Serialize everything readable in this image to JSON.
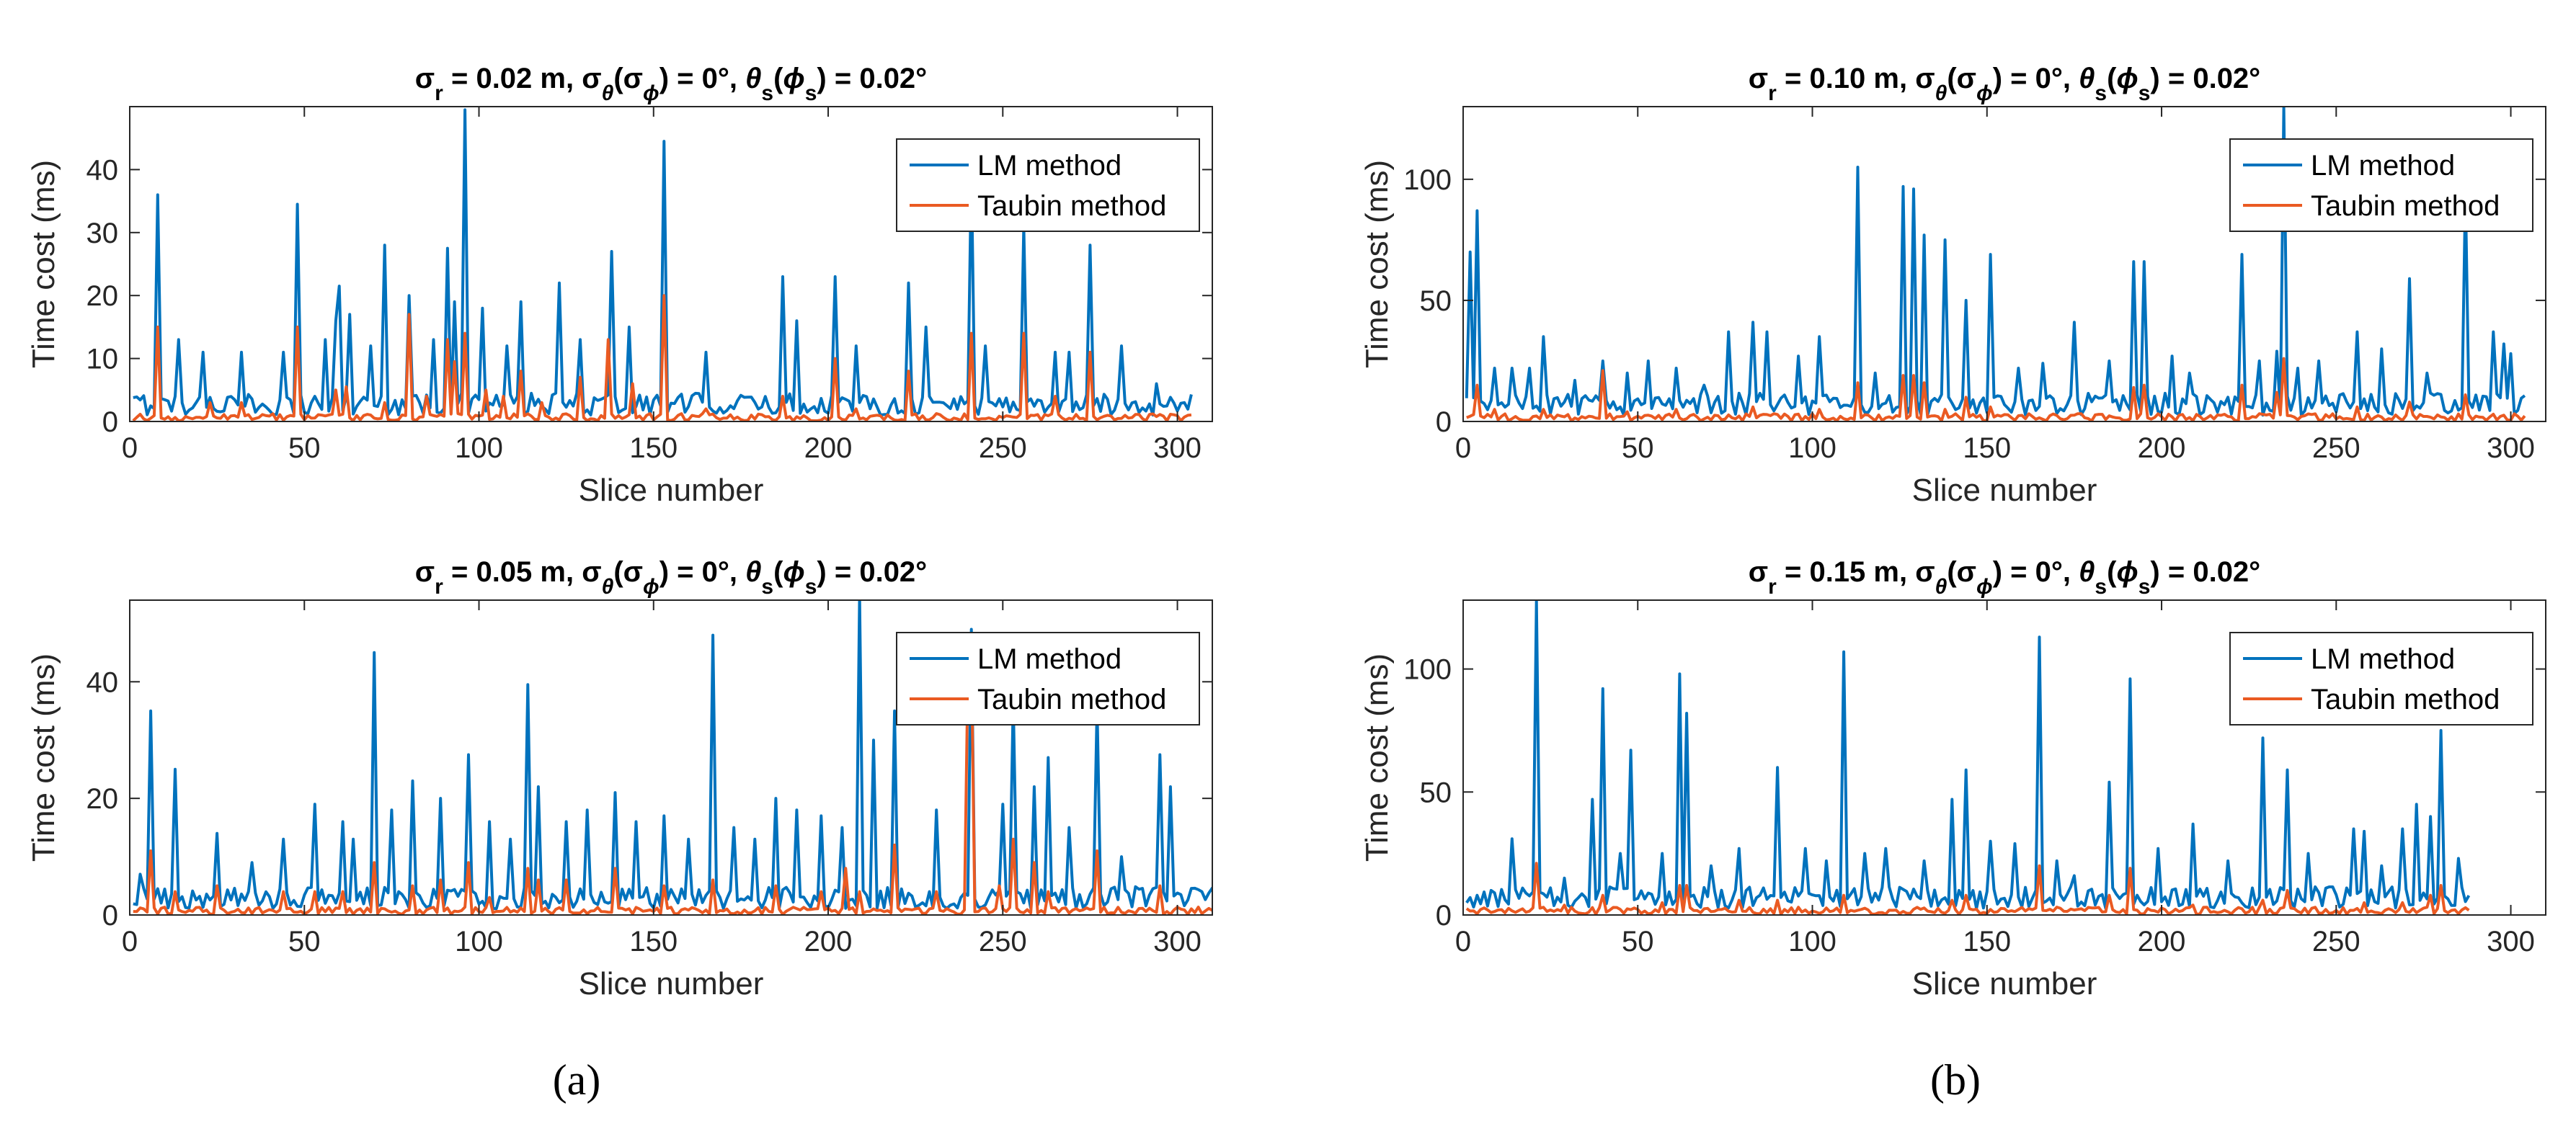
{
  "figure": {
    "caption_a": "(a)",
    "caption_b": "(b)"
  },
  "colors": {
    "lm": "#0072BD",
    "taubin": "#EA5A22",
    "axis": "#262626"
  },
  "chart_data": [
    {
      "id": "a-top",
      "type": "line",
      "title": "σr = 0.02 m, σθ(σϕ) = 0°, θs(ϕs) = 0.02°",
      "title_parts": {
        "sigma_r": "0.02"
      },
      "xlabel": "Slice number",
      "ylabel": "Time cost (ms)",
      "xlim": [
        0,
        310
      ],
      "ylim": [
        0,
        50
      ],
      "xticks": [
        0,
        50,
        100,
        150,
        200,
        250,
        300
      ],
      "yticks": [
        0,
        10,
        20,
        30,
        40
      ],
      "legend": [
        "LM method",
        "Taubin method"
      ],
      "legend_position": "top-right",
      "n": 304,
      "lm_peaks": [
        [
          7,
          36
        ],
        [
          13,
          13
        ],
        [
          20,
          11
        ],
        [
          31,
          11
        ],
        [
          43,
          11
        ],
        [
          47,
          34.5
        ],
        [
          55,
          13
        ],
        [
          58,
          16
        ],
        [
          59,
          21.5
        ],
        [
          62,
          17
        ],
        [
          68,
          12
        ],
        [
          72,
          28
        ],
        [
          79,
          20
        ],
        [
          86,
          13
        ],
        [
          90,
          27.5
        ],
        [
          92,
          19
        ],
        [
          95,
          49.5
        ],
        [
          100,
          18
        ],
        [
          107,
          12
        ],
        [
          111,
          19
        ],
        [
          122,
          22
        ],
        [
          128,
          13
        ],
        [
          137,
          27
        ],
        [
          142,
          15
        ],
        [
          152,
          44.5
        ],
        [
          164,
          11
        ],
        [
          186,
          23
        ],
        [
          190,
          16
        ],
        [
          201,
          23
        ],
        [
          207,
          12
        ],
        [
          222,
          22
        ],
        [
          227,
          15
        ],
        [
          240,
          40
        ],
        [
          244,
          12
        ],
        [
          255,
          31
        ],
        [
          264,
          11
        ],
        [
          268,
          11
        ],
        [
          274,
          28
        ],
        [
          283,
          12
        ],
        [
          293,
          6
        ],
        [
          301,
          3
        ]
      ],
      "taubin_peaks": [
        [
          7,
          15
        ],
        [
          22,
          3
        ],
        [
          31,
          3
        ],
        [
          47,
          15
        ],
        [
          58,
          5
        ],
        [
          61,
          5.5
        ],
        [
          72,
          3
        ],
        [
          79,
          17
        ],
        [
          84,
          4
        ],
        [
          90,
          13
        ],
        [
          92,
          9.5
        ],
        [
          95,
          14
        ],
        [
          101,
          5
        ],
        [
          106,
          4
        ],
        [
          111,
          8
        ],
        [
          117,
          3
        ],
        [
          128,
          7
        ],
        [
          136,
          13
        ],
        [
          143,
          6
        ],
        [
          152,
          20
        ],
        [
          164,
          2
        ],
        [
          186,
          4
        ],
        [
          201,
          10
        ],
        [
          207,
          2
        ],
        [
          222,
          8
        ],
        [
          240,
          14
        ],
        [
          255,
          14
        ],
        [
          264,
          4
        ],
        [
          274,
          11
        ]
      ]
    },
    {
      "id": "a-bottom",
      "type": "line",
      "title": "σr = 0.05 m, σθ(σϕ) = 0°, θs(ϕs) = 0.02°",
      "title_parts": {
        "sigma_r": "0.05"
      },
      "xlabel": "Slice number",
      "ylabel": "Time cost (ms)",
      "xlim": [
        0,
        310
      ],
      "ylim": [
        0,
        54
      ],
      "xticks": [
        0,
        50,
        100,
        150,
        200,
        250,
        300
      ],
      "yticks": [
        0,
        20,
        40
      ],
      "legend": [
        "LM method",
        "Taubin method"
      ],
      "legend_position": "top-right",
      "n": 312,
      "lm_peaks": [
        [
          2,
          7
        ],
        [
          5,
          35
        ],
        [
          12,
          25
        ],
        [
          24,
          14
        ],
        [
          34,
          9
        ],
        [
          43,
          13
        ],
        [
          52,
          19
        ],
        [
          60,
          16
        ],
        [
          63,
          13
        ],
        [
          69,
          45
        ],
        [
          74,
          18
        ],
        [
          80,
          23
        ],
        [
          88,
          20
        ],
        [
          96,
          27.5
        ],
        [
          102,
          16
        ],
        [
          108,
          13
        ],
        [
          113,
          39.5
        ],
        [
          116,
          22
        ],
        [
          124,
          16
        ],
        [
          130,
          18
        ],
        [
          138,
          21
        ],
        [
          144,
          16
        ],
        [
          152,
          17
        ],
        [
          159,
          13
        ],
        [
          166,
          48
        ],
        [
          172,
          15
        ],
        [
          178,
          13
        ],
        [
          184,
          20
        ],
        [
          190,
          18
        ],
        [
          197,
          17
        ],
        [
          203,
          15
        ],
        [
          208,
          55
        ],
        [
          212,
          30
        ],
        [
          218,
          35
        ],
        [
          230,
          18
        ],
        [
          240,
          49
        ],
        [
          249,
          19
        ],
        [
          252,
          37
        ],
        [
          258,
          22
        ],
        [
          262,
          27
        ],
        [
          268,
          15
        ],
        [
          276,
          36
        ],
        [
          283,
          10
        ],
        [
          294,
          27.5
        ],
        [
          297,
          22
        ],
        [
          306,
          4
        ]
      ],
      "taubin_peaks": [
        [
          5,
          11
        ],
        [
          12,
          4
        ],
        [
          24,
          5
        ],
        [
          43,
          4
        ],
        [
          52,
          4
        ],
        [
          60,
          4
        ],
        [
          69,
          9
        ],
        [
          80,
          5
        ],
        [
          88,
          6
        ],
        [
          96,
          9
        ],
        [
          102,
          3
        ],
        [
          113,
          8
        ],
        [
          116,
          6
        ],
        [
          124,
          6
        ],
        [
          138,
          8
        ],
        [
          152,
          5
        ],
        [
          166,
          6
        ],
        [
          184,
          5
        ],
        [
          197,
          4
        ],
        [
          204,
          8
        ],
        [
          208,
          4
        ],
        [
          218,
          12
        ],
        [
          230,
          4
        ],
        [
          239,
          41
        ],
        [
          240,
          45
        ],
        [
          248,
          5
        ],
        [
          252,
          13
        ],
        [
          258,
          9
        ],
        [
          262,
          4
        ],
        [
          276,
          11
        ],
        [
          294,
          5
        ]
      ]
    },
    {
      "id": "b-top",
      "type": "line",
      "title": "σr = 0.10 m, σθ(σϕ) = 0°, θs(ϕs) = 0.02°",
      "title_parts": {
        "sigma_r": "0.10"
      },
      "xlabel": "Slice number",
      "ylabel": "Time cost (ms)",
      "xlim": [
        0,
        310
      ],
      "ylim": [
        0,
        130
      ],
      "xticks": [
        0,
        50,
        100,
        150,
        200,
        250,
        300
      ],
      "yticks": [
        0,
        50,
        100
      ],
      "legend": [
        "LM method",
        "Taubin method"
      ],
      "legend_position": "top-right",
      "n": 304,
      "lm_peaks": [
        [
          1,
          70
        ],
        [
          3,
          87
        ],
        [
          8,
          22
        ],
        [
          13,
          22
        ],
        [
          18,
          22
        ],
        [
          22,
          35
        ],
        [
          31,
          17
        ],
        [
          39,
          25
        ],
        [
          46,
          20
        ],
        [
          52,
          25
        ],
        [
          60,
          22
        ],
        [
          68,
          15
        ],
        [
          75,
          37
        ],
        [
          82,
          41
        ],
        [
          86,
          37
        ],
        [
          95,
          27
        ],
        [
          101,
          35
        ],
        [
          112,
          105
        ],
        [
          117,
          20
        ],
        [
          125,
          97
        ],
        [
          128,
          96
        ],
        [
          131,
          77
        ],
        [
          137,
          75
        ],
        [
          143,
          50
        ],
        [
          150,
          69
        ],
        [
          158,
          22
        ],
        [
          165,
          24
        ],
        [
          174,
          41
        ],
        [
          184,
          25
        ],
        [
          191,
          66
        ],
        [
          194,
          66
        ],
        [
          202,
          27
        ],
        [
          207,
          20
        ],
        [
          222,
          69
        ],
        [
          227,
          25
        ],
        [
          232,
          29
        ],
        [
          234,
          130
        ],
        [
          238,
          22
        ],
        [
          244,
          25
        ],
        [
          255,
          37
        ],
        [
          262,
          30
        ],
        [
          270,
          59
        ],
        [
          275,
          20
        ],
        [
          286,
          95
        ],
        [
          294,
          37
        ],
        [
          297,
          32
        ],
        [
          299,
          28
        ]
      ],
      "taubin_peaks": [
        [
          3,
          15
        ],
        [
          8,
          5
        ],
        [
          22,
          5
        ],
        [
          39,
          21
        ],
        [
          46,
          4
        ],
        [
          60,
          5
        ],
        [
          82,
          6
        ],
        [
          101,
          5
        ],
        [
          112,
          16
        ],
        [
          125,
          19
        ],
        [
          128,
          19
        ],
        [
          131,
          16
        ],
        [
          137,
          5
        ],
        [
          143,
          10
        ],
        [
          150,
          6
        ],
        [
          191,
          14
        ],
        [
          194,
          15
        ],
        [
          222,
          15
        ],
        [
          232,
          12
        ],
        [
          234,
          26
        ],
        [
          255,
          6
        ],
        [
          270,
          8
        ],
        [
          286,
          11
        ]
      ]
    },
    {
      "id": "b-bottom",
      "type": "line",
      "title": "σr = 0.15 m, σθ(σϕ) = 0°, θs(ϕs) = 0.02°",
      "title_parts": {
        "sigma_r": "0.15"
      },
      "xlabel": "Slice number",
      "ylabel": "Time cost (ms)",
      "xlim": [
        0,
        310
      ],
      "ylim": [
        0,
        128
      ],
      "xticks": [
        0,
        50,
        100,
        150,
        200,
        250,
        300
      ],
      "yticks": [
        0,
        50,
        100
      ],
      "legend": [
        "LM method",
        "Taubin method"
      ],
      "legend_position": "top-right",
      "n": 288,
      "lm_peaks": [
        [
          3,
          8
        ],
        [
          8,
          9
        ],
        [
          13,
          31
        ],
        [
          20,
          128
        ],
        [
          28,
          15
        ],
        [
          36,
          47
        ],
        [
          39,
          92
        ],
        [
          44,
          25
        ],
        [
          47,
          67
        ],
        [
          56,
          25
        ],
        [
          61,
          98
        ],
        [
          63,
          82
        ],
        [
          70,
          20
        ],
        [
          78,
          27
        ],
        [
          89,
          60
        ],
        [
          97,
          27
        ],
        [
          103,
          22
        ],
        [
          108,
          107
        ],
        [
          114,
          25
        ],
        [
          120,
          27
        ],
        [
          131,
          22
        ],
        [
          139,
          47
        ],
        [
          143,
          59
        ],
        [
          150,
          30
        ],
        [
          157,
          29
        ],
        [
          164,
          113
        ],
        [
          169,
          22
        ],
        [
          174,
          16
        ],
        [
          184,
          54
        ],
        [
          190,
          96
        ],
        [
          198,
          27
        ],
        [
          208,
          37
        ],
        [
          218,
          22
        ],
        [
          228,
          72
        ],
        [
          235,
          59
        ],
        [
          241,
          25
        ],
        [
          254,
          35
        ],
        [
          257,
          34
        ],
        [
          262,
          20
        ],
        [
          268,
          35
        ],
        [
          272,
          45
        ],
        [
          276,
          40
        ],
        [
          279,
          75
        ],
        [
          284,
          23
        ]
      ],
      "taubin_peaks": [
        [
          20,
          21
        ],
        [
          28,
          4
        ],
        [
          39,
          8
        ],
        [
          56,
          5
        ],
        [
          61,
          12
        ],
        [
          63,
          12
        ],
        [
          78,
          6
        ],
        [
          89,
          6
        ],
        [
          108,
          8
        ],
        [
          139,
          6
        ],
        [
          143,
          8
        ],
        [
          164,
          20
        ],
        [
          184,
          8
        ],
        [
          190,
          19
        ],
        [
          208,
          4
        ],
        [
          228,
          6
        ],
        [
          235,
          10
        ],
        [
          257,
          5
        ],
        [
          268,
          5
        ],
        [
          276,
          8
        ],
        [
          279,
          12
        ]
      ]
    }
  ]
}
